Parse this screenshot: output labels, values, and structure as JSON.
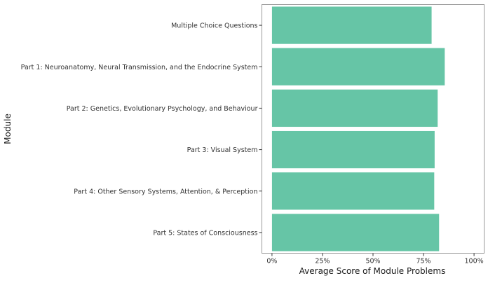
{
  "chart_data": {
    "type": "bar",
    "orientation": "horizontal",
    "categories": [
      "Multiple Choice Questions",
      "Part 1: Neuroanatomy, Neural Transmission, and the Endocrine System",
      "Part 2: Genetics, Evolutionary Psychology, and Behaviour",
      "Part 3: Visual System",
      "Part 4: Other Sensory Systems, Attention, & Perception",
      "Part 5: States of Consciousness"
    ],
    "values": [
      0.79,
      0.855,
      0.82,
      0.805,
      0.803,
      0.827
    ],
    "xlabel": "Average Score of Module Problems",
    "ylabel": "Module",
    "xlim": [
      -0.05,
      1.05
    ],
    "xticks": [
      0,
      0.25,
      0.5,
      0.75,
      1.0
    ],
    "xtick_labels": [
      "0%",
      "25%",
      "50%",
      "75%",
      "100%"
    ],
    "grid": false,
    "bar_color": "#66c5a6"
  }
}
